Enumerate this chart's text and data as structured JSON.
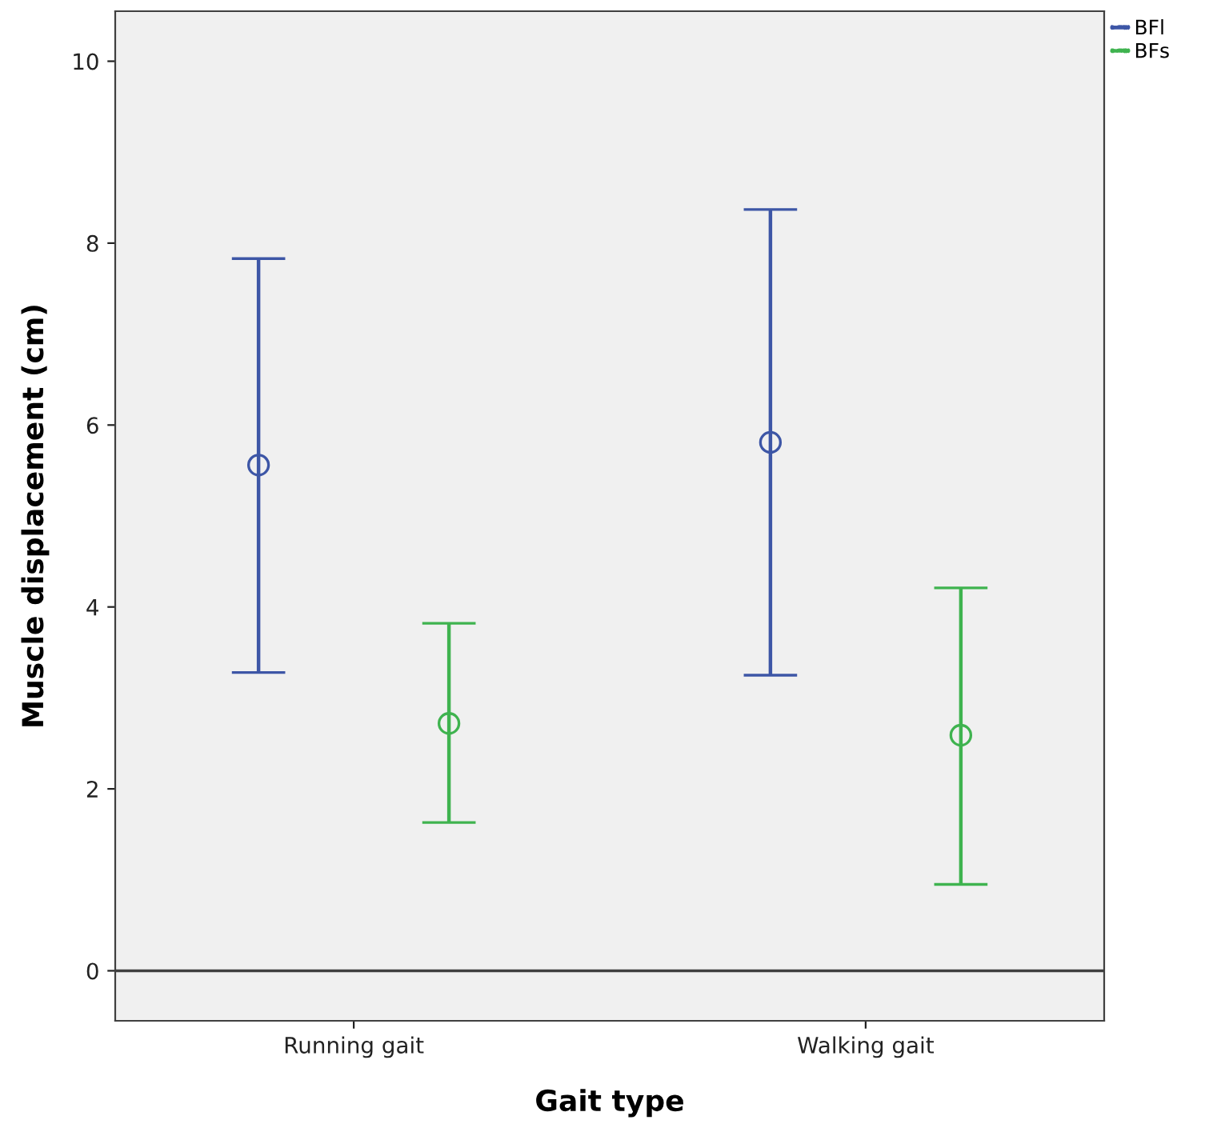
{
  "chart_data": {
    "type": "scatter",
    "xlabel": "Gait type",
    "ylabel": "Muscle displacement (cm)",
    "categories": [
      "Running gait",
      "Walking gait"
    ],
    "series": [
      {
        "name": "BFl",
        "color": "#3d56a6",
        "values": [
          5.56,
          5.81
        ],
        "errors": [
          [
            3.28,
            7.83
          ],
          [
            3.25,
            8.37
          ]
        ]
      },
      {
        "name": "BFs",
        "color": "#3fb34f",
        "values": [
          2.72,
          2.59
        ],
        "errors": [
          [
            1.63,
            3.82
          ],
          [
            0.95,
            4.21
          ]
        ]
      }
    ],
    "ylim": [
      -0.55,
      10.55
    ],
    "yticks": [
      0,
      2,
      4,
      6,
      8,
      10
    ],
    "ref_lines": [
      {
        "axis": "y",
        "value": 0,
        "color": "#404040"
      }
    ],
    "marker": "circle",
    "grid": false,
    "legend": "top right"
  }
}
